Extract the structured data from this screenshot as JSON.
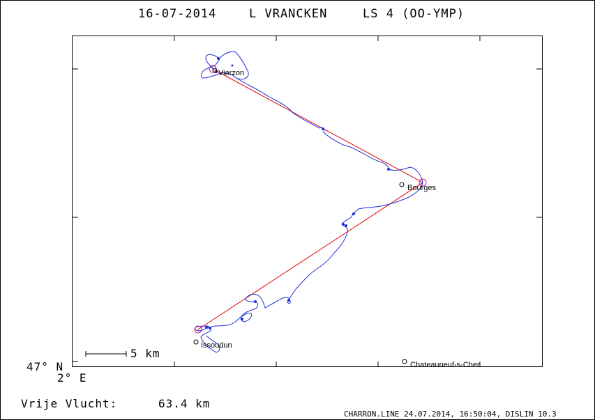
{
  "title": {
    "date": "16-07-2014",
    "pilot": "L VRANCKEN",
    "glider": "LS 4 (OO-YMP)"
  },
  "axes": {
    "lat_label": "47° N",
    "lon_label": "2° E"
  },
  "scale_bar": {
    "label": "5 km"
  },
  "towns": [
    {
      "name": "Vierzon"
    },
    {
      "name": "Bourges"
    },
    {
      "name": "Issoudun"
    },
    {
      "name": "Chateauneuf-s-Cher"
    }
  ],
  "summary": {
    "label": "Vrije Vlucht:",
    "distance": "63.4 km"
  },
  "footer": "CHARRON.LINE 24.07.2014, 16:50:04, DISLIN 10.3",
  "colors": {
    "track": "#1f2fd6",
    "task_line": "#e00000",
    "turnpoint": "#c0209a",
    "frame": "#000000"
  }
}
